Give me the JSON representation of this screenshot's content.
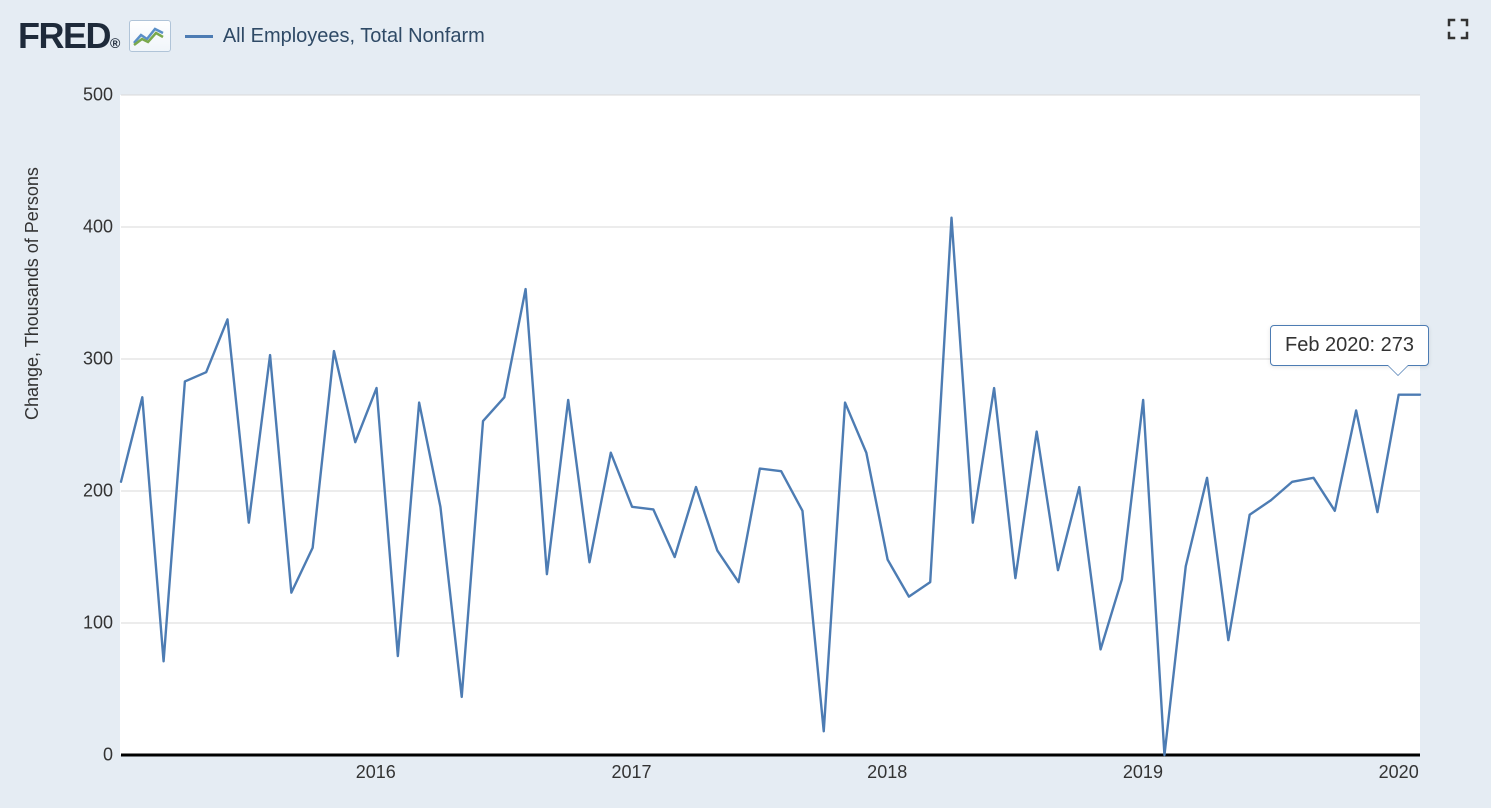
{
  "header": {
    "brand": "FRED",
    "legend_label": "All Employees, Total Nonfarm"
  },
  "tooltip": {
    "label": "Feb 2020:",
    "value": "273"
  },
  "chart": {
    "type": "line",
    "ylabel": "Change, Thousands of Persons",
    "ylim": [
      0,
      500
    ],
    "ytick_step": 100,
    "yticks": [
      0,
      100,
      200,
      300,
      400,
      500
    ],
    "x_start": "2015-01",
    "x_end": "2020-02",
    "xticks_labels": [
      "2016",
      "2017",
      "2018",
      "2019",
      "2020"
    ],
    "xticks_month_index": [
      12,
      24,
      36,
      48,
      60
    ],
    "line_color": "#4d7cb3",
    "line_width": 2.4,
    "grid_color": "#d9d9d9",
    "zero_line_color": "#000000",
    "background_color": "#ffffff",
    "page_background": "#e5ecf3",
    "tick_font_size": 18,
    "legend_font_size": 20,
    "values": [
      207,
      271,
      71,
      283,
      290,
      330,
      176,
      303,
      123,
      157,
      306,
      237,
      278,
      75,
      267,
      188,
      44,
      253,
      271,
      353,
      137,
      269,
      146,
      229,
      188,
      186,
      150,
      203,
      155,
      131,
      217,
      215,
      185,
      18,
      267,
      229,
      148,
      120,
      131,
      407,
      176,
      278,
      134,
      245,
      140,
      203,
      80,
      133,
      269,
      0,
      143,
      210,
      87,
      182,
      193,
      207,
      210,
      185,
      261,
      184,
      273,
      273
    ]
  }
}
